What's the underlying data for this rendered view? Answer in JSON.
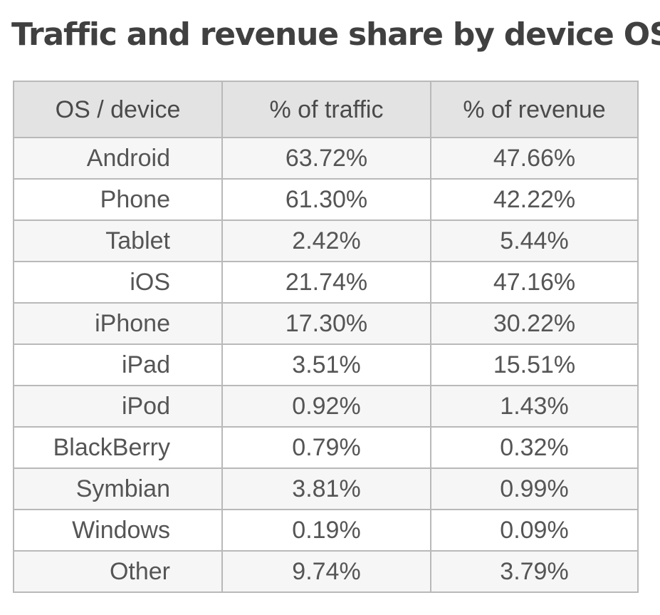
{
  "title": "Traffic and revenue share by device OS*",
  "chart_data": {
    "type": "table",
    "title": "Traffic and revenue share by device OS*",
    "columns": [
      "OS / device",
      "% of traffic",
      "% of revenue"
    ],
    "rows": [
      {
        "label": "Android",
        "traffic": "63.72%",
        "revenue": "47.66%"
      },
      {
        "label": "Phone",
        "traffic": "61.30%",
        "revenue": "42.22%"
      },
      {
        "label": "Tablet",
        "traffic": "2.42%",
        "revenue": "5.44%"
      },
      {
        "label": "iOS",
        "traffic": "21.74%",
        "revenue": "47.16%"
      },
      {
        "label": "iPhone",
        "traffic": "17.30%",
        "revenue": "30.22%"
      },
      {
        "label": "iPad",
        "traffic": "3.51%",
        "revenue": "15.51%"
      },
      {
        "label": "iPod",
        "traffic": "0.92%",
        "revenue": "1.43%"
      },
      {
        "label": "BlackBerry",
        "traffic": "0.79%",
        "revenue": "0.32%"
      },
      {
        "label": "Symbian",
        "traffic": "3.81%",
        "revenue": "0.99%"
      },
      {
        "label": "Windows",
        "traffic": "0.19%",
        "revenue": "0.09%"
      },
      {
        "label": "Other",
        "traffic": "9.74%",
        "revenue": "3.79%"
      }
    ]
  }
}
